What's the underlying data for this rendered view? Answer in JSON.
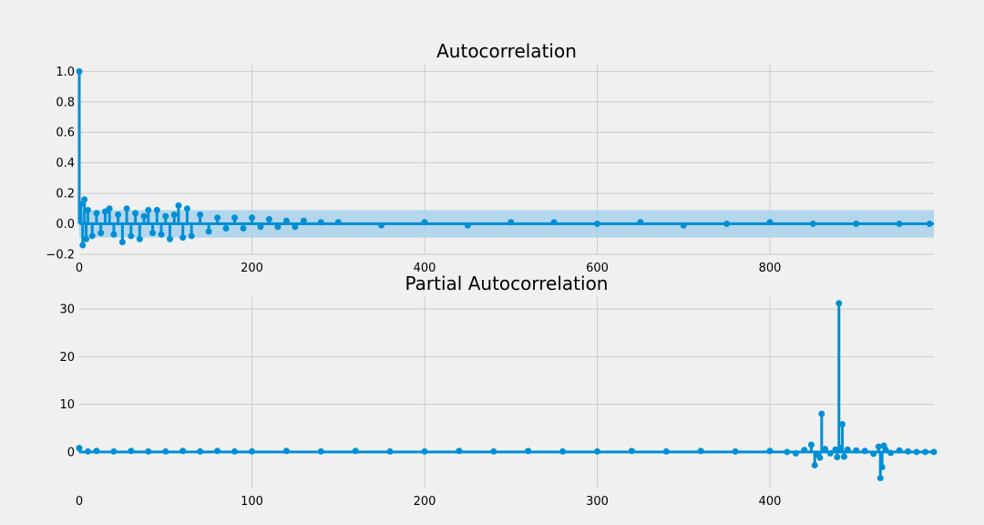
{
  "theme": {
    "background": "#f0f0f0",
    "grid_color": "#cbcbcb",
    "series_color": "#008fd5",
    "confidence_band_color": "#a8d1eb",
    "text_color": "#000000"
  },
  "chart_data": [
    {
      "type": "line",
      "style": "stem with markers",
      "title": "Autocorrelation",
      "xlabel": "",
      "ylabel": "",
      "xlim": [
        0,
        990
      ],
      "ylim": [
        -0.2,
        1.05
      ],
      "x_ticks": [
        "0",
        "200",
        "400",
        "600",
        "800"
      ],
      "y_ticks": [
        "−0.2",
        "0.0",
        "0.2",
        "0.4",
        "0.6",
        "0.8",
        "1.0"
      ],
      "grid": true,
      "legend": "none",
      "confidence_band": [
        -0.09,
        0.09
      ],
      "series": [
        {
          "x": [
            0,
            2,
            4,
            6,
            8,
            10,
            15,
            20,
            25,
            30,
            35,
            40,
            45,
            50,
            55,
            60,
            65,
            70,
            75,
            80,
            85,
            90,
            95,
            100,
            105,
            110,
            115,
            120,
            125,
            130,
            140,
            150,
            160,
            170,
            180,
            190,
            200,
            210,
            220,
            230,
            240,
            250,
            260,
            280,
            300,
            350,
            400,
            450,
            500,
            550,
            600,
            650,
            700,
            750,
            800,
            850,
            900,
            950,
            985
          ],
          "y": [
            1.0,
            0.13,
            -0.14,
            0.16,
            -0.1,
            0.09,
            -0.08,
            0.07,
            -0.06,
            0.08,
            0.1,
            -0.07,
            0.06,
            -0.12,
            0.1,
            -0.08,
            0.07,
            -0.1,
            0.05,
            0.09,
            -0.06,
            0.09,
            -0.07,
            0.05,
            -0.1,
            0.06,
            0.12,
            -0.09,
            0.1,
            -0.08,
            0.06,
            -0.05,
            0.04,
            -0.03,
            0.04,
            -0.03,
            0.04,
            -0.02,
            0.03,
            -0.02,
            0.02,
            -0.02,
            0.02,
            0.01,
            0.01,
            -0.01,
            0.01,
            -0.01,
            0.01,
            0.01,
            0.0,
            0.01,
            -0.01,
            0.0,
            0.01,
            0.0,
            0.0,
            0.0,
            0.0
          ]
        }
      ]
    },
    {
      "type": "line",
      "style": "stem with markers",
      "title": "Partial Autocorrelation",
      "xlabel": "",
      "ylabel": "",
      "xlim": [
        0,
        495
      ],
      "ylim": [
        -7.5,
        32.5
      ],
      "x_ticks": [
        "0",
        "100",
        "200",
        "300",
        "400"
      ],
      "y_ticks": [
        "0",
        "10",
        "20",
        "30"
      ],
      "grid": true,
      "legend": "none",
      "series": [
        {
          "x": [
            0,
            5,
            10,
            20,
            30,
            40,
            50,
            60,
            70,
            80,
            90,
            100,
            120,
            140,
            160,
            180,
            200,
            220,
            240,
            260,
            280,
            300,
            320,
            340,
            360,
            380,
            400,
            410,
            415,
            420,
            424,
            426,
            427,
            429,
            430,
            432,
            435,
            438,
            439,
            440,
            441,
            442,
            443,
            445,
            450,
            455,
            460,
            463,
            464,
            465,
            466,
            467,
            470,
            475,
            480,
            485,
            490,
            495
          ],
          "y": [
            0.8,
            0.1,
            0.2,
            0.1,
            0.2,
            0.1,
            0.1,
            0.2,
            0.1,
            0.2,
            0.1,
            0.1,
            0.2,
            0.1,
            0.2,
            0.1,
            0.1,
            0.2,
            0.1,
            0.2,
            0.1,
            0.1,
            0.2,
            0.1,
            0.2,
            0.1,
            0.2,
            0.0,
            -0.3,
            0.4,
            1.5,
            -2.8,
            -0.5,
            -1.2,
            8.0,
            0.6,
            -0.3,
            0.5,
            -1.1,
            31.2,
            0.8,
            5.8,
            -1.0,
            0.5,
            0.3,
            0.2,
            -0.4,
            1.1,
            -5.5,
            -3.2,
            1.3,
            0.5,
            -0.2,
            0.3,
            0.1,
            0.0,
            0.0,
            0.0
          ]
        }
      ]
    }
  ]
}
